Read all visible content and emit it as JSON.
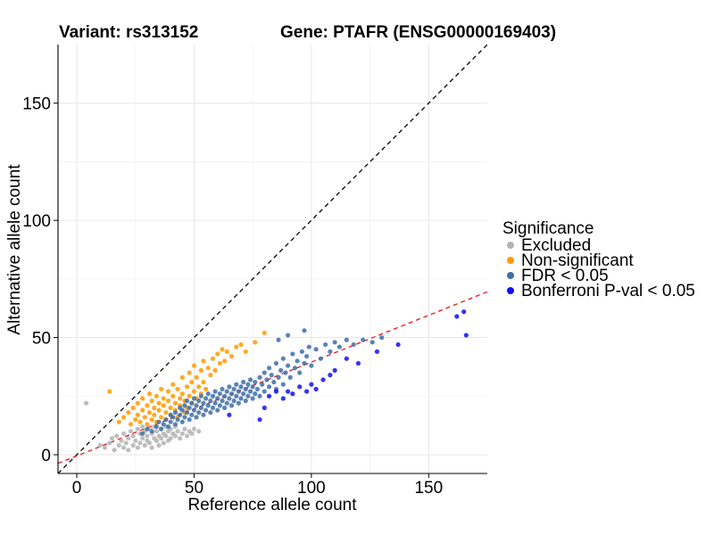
{
  "chart_data": {
    "type": "scatter",
    "title_left": "Variant: rs313152",
    "title_right": "Gene: PTAFR (ENSG00000169403)",
    "xlabel": "Reference allele count",
    "ylabel": "Alternative allele count",
    "xlim": [
      -8,
      175
    ],
    "ylim": [
      -8,
      175
    ],
    "x_ticks": [
      0,
      50,
      100,
      150
    ],
    "y_ticks": [
      0,
      50,
      100,
      150
    ],
    "grid": true,
    "legend_position": "right",
    "legend": {
      "title": "Significance",
      "entries": [
        {
          "label": "Excluded",
          "color": "#b3b3b3"
        },
        {
          "label": "Non-significant",
          "color": "#ff9a00"
        },
        {
          "label": "FDR < 0.05",
          "color": "#3d6fa8"
        },
        {
          "label": "Bonferroni P-val < 0.05",
          "color": "#1010ee"
        }
      ]
    },
    "reference_lines": [
      {
        "name": "identity",
        "slope": 1,
        "intercept": 0,
        "style": "dashed",
        "color": "#000000"
      },
      {
        "name": "fit",
        "slope": 0.4,
        "intercept": -0.5,
        "style": "dashed",
        "color": "#e31a1c"
      }
    ],
    "series": [
      {
        "name": "Excluded",
        "color": "#b3b3b3",
        "points": [
          [
            4,
            22
          ],
          [
            10,
            4
          ],
          [
            12,
            3
          ],
          [
            14,
            5
          ],
          [
            15,
            7
          ],
          [
            16,
            2
          ],
          [
            17,
            8
          ],
          [
            18,
            4
          ],
          [
            19,
            6
          ],
          [
            20,
            3
          ],
          [
            20,
            9
          ],
          [
            21,
            5
          ],
          [
            22,
            7
          ],
          [
            22,
            2
          ],
          [
            23,
            10
          ],
          [
            24,
            4
          ],
          [
            24,
            8
          ],
          [
            25,
            6
          ],
          [
            26,
            3
          ],
          [
            26,
            11
          ],
          [
            27,
            5
          ],
          [
            27,
            9
          ],
          [
            28,
            7
          ],
          [
            28,
            12
          ],
          [
            29,
            4
          ],
          [
            29,
            10
          ],
          [
            30,
            6
          ],
          [
            30,
            8
          ],
          [
            31,
            11
          ],
          [
            31,
            5
          ],
          [
            32,
            9
          ],
          [
            32,
            3
          ],
          [
            33,
            7
          ],
          [
            33,
            12
          ],
          [
            34,
            10
          ],
          [
            34,
            6
          ],
          [
            35,
            8
          ],
          [
            35,
            4
          ],
          [
            36,
            11
          ],
          [
            36,
            7
          ],
          [
            37,
            9
          ],
          [
            37,
            5
          ],
          [
            38,
            12
          ],
          [
            38,
            8
          ],
          [
            39,
            10
          ],
          [
            39,
            6
          ],
          [
            40,
            7
          ],
          [
            40,
            11
          ],
          [
            41,
            9
          ],
          [
            42,
            8
          ],
          [
            42,
            12
          ],
          [
            43,
            10
          ],
          [
            44,
            7
          ],
          [
            45,
            9
          ],
          [
            46,
            11
          ],
          [
            47,
            8
          ],
          [
            48,
            10
          ],
          [
            49,
            9
          ],
          [
            50,
            11
          ],
          [
            52,
            10
          ]
        ]
      },
      {
        "name": "Non-significant",
        "color": "#ff9a00",
        "points": [
          [
            14,
            27
          ],
          [
            18,
            14
          ],
          [
            20,
            16
          ],
          [
            22,
            18
          ],
          [
            23,
            13
          ],
          [
            24,
            20
          ],
          [
            25,
            15
          ],
          [
            26,
            17
          ],
          [
            26,
            22
          ],
          [
            27,
            14
          ],
          [
            28,
            19
          ],
          [
            28,
            24
          ],
          [
            29,
            16
          ],
          [
            30,
            21
          ],
          [
            30,
            13
          ],
          [
            31,
            18
          ],
          [
            31,
            26
          ],
          [
            32,
            15
          ],
          [
            32,
            23
          ],
          [
            33,
            20
          ],
          [
            33,
            17
          ],
          [
            34,
            25
          ],
          [
            34,
            14
          ],
          [
            35,
            22
          ],
          [
            35,
            19
          ],
          [
            36,
            16
          ],
          [
            36,
            28
          ],
          [
            37,
            21
          ],
          [
            37,
            24
          ],
          [
            38,
            18
          ],
          [
            38,
            15
          ],
          [
            39,
            27
          ],
          [
            39,
            23
          ],
          [
            40,
            20
          ],
          [
            40,
            17
          ],
          [
            41,
            25
          ],
          [
            41,
            30
          ],
          [
            42,
            22
          ],
          [
            42,
            19
          ],
          [
            43,
            16
          ],
          [
            43,
            28
          ],
          [
            44,
            24
          ],
          [
            44,
            21
          ],
          [
            45,
            33
          ],
          [
            45,
            26
          ],
          [
            46,
            18
          ],
          [
            46,
            23
          ],
          [
            47,
            29
          ],
          [
            47,
            20
          ],
          [
            48,
            35
          ],
          [
            48,
            25
          ],
          [
            49,
            22
          ],
          [
            49,
            31
          ],
          [
            50,
            27
          ],
          [
            50,
            38
          ],
          [
            51,
            24
          ],
          [
            51,
            33
          ],
          [
            52,
            29
          ],
          [
            53,
            36
          ],
          [
            53,
            26
          ],
          [
            54,
            40
          ],
          [
            54,
            31
          ],
          [
            55,
            28
          ],
          [
            56,
            37
          ],
          [
            57,
            34
          ],
          [
            58,
            41
          ],
          [
            59,
            36
          ],
          [
            60,
            43
          ],
          [
            61,
            39
          ],
          [
            62,
            45
          ],
          [
            63,
            40
          ],
          [
            64,
            44
          ],
          [
            66,
            42
          ],
          [
            68,
            46
          ],
          [
            70,
            47
          ],
          [
            72,
            44
          ],
          [
            76,
            48
          ],
          [
            80,
            52
          ]
        ]
      },
      {
        "name": "FDR < 0.05",
        "color": "#3d6fa8",
        "points": [
          [
            28,
            9
          ],
          [
            30,
            11
          ],
          [
            32,
            10
          ],
          [
            34,
            12
          ],
          [
            35,
            14
          ],
          [
            36,
            11
          ],
          [
            37,
            13
          ],
          [
            38,
            15
          ],
          [
            39,
            12
          ],
          [
            40,
            14
          ],
          [
            40,
            17
          ],
          [
            41,
            16
          ],
          [
            42,
            13
          ],
          [
            42,
            18
          ],
          [
            43,
            15
          ],
          [
            44,
            17
          ],
          [
            44,
            20
          ],
          [
            45,
            14
          ],
          [
            45,
            19
          ],
          [
            46,
            16
          ],
          [
            46,
            21
          ],
          [
            47,
            18
          ],
          [
            47,
            23
          ],
          [
            48,
            15
          ],
          [
            48,
            20
          ],
          [
            49,
            22
          ],
          [
            49,
            17
          ],
          [
            50,
            19
          ],
          [
            50,
            24
          ],
          [
            51,
            21
          ],
          [
            51,
            16
          ],
          [
            52,
            23
          ],
          [
            52,
            18
          ],
          [
            53,
            20
          ],
          [
            53,
            25
          ],
          [
            54,
            22
          ],
          [
            54,
            17
          ],
          [
            55,
            24
          ],
          [
            55,
            19
          ],
          [
            56,
            21
          ],
          [
            56,
            26
          ],
          [
            57,
            23
          ],
          [
            57,
            18
          ],
          [
            58,
            25
          ],
          [
            58,
            20
          ],
          [
            59,
            22
          ],
          [
            59,
            27
          ],
          [
            60,
            24
          ],
          [
            60,
            19
          ],
          [
            61,
            26
          ],
          [
            61,
            21
          ],
          [
            62,
            23
          ],
          [
            62,
            28
          ],
          [
            63,
            25
          ],
          [
            63,
            20
          ],
          [
            64,
            27
          ],
          [
            64,
            22
          ],
          [
            65,
            24
          ],
          [
            65,
            29
          ],
          [
            66,
            26
          ],
          [
            66,
            21
          ],
          [
            67,
            28
          ],
          [
            67,
            23
          ],
          [
            68,
            25
          ],
          [
            68,
            30
          ],
          [
            69,
            27
          ],
          [
            69,
            22
          ],
          [
            70,
            29
          ],
          [
            70,
            24
          ],
          [
            71,
            26
          ],
          [
            71,
            31
          ],
          [
            72,
            28
          ],
          [
            72,
            23
          ],
          [
            73,
            30
          ],
          [
            73,
            25
          ],
          [
            74,
            27
          ],
          [
            74,
            32
          ],
          [
            75,
            29
          ],
          [
            75,
            24
          ],
          [
            76,
            31
          ],
          [
            76,
            26
          ],
          [
            77,
            28
          ],
          [
            78,
            33
          ],
          [
            78,
            25
          ],
          [
            79,
            30
          ],
          [
            80,
            35
          ],
          [
            80,
            27
          ],
          [
            81,
            32
          ],
          [
            82,
            29
          ],
          [
            82,
            37
          ],
          [
            83,
            34
          ],
          [
            84,
            31
          ],
          [
            85,
            39
          ],
          [
            85,
            28
          ],
          [
            86,
            33
          ],
          [
            87,
            36
          ],
          [
            88,
            41
          ],
          [
            88,
            30
          ],
          [
            89,
            35
          ],
          [
            90,
            38
          ],
          [
            91,
            33
          ],
          [
            92,
            43
          ],
          [
            93,
            37
          ],
          [
            94,
            40
          ],
          [
            95,
            35
          ],
          [
            96,
            44
          ],
          [
            97,
            39
          ],
          [
            98,
            42
          ],
          [
            99,
            46
          ],
          [
            100,
            38
          ],
          [
            102,
            45
          ],
          [
            104,
            41
          ],
          [
            106,
            47
          ],
          [
            108,
            44
          ],
          [
            110,
            48
          ],
          [
            112,
            46
          ],
          [
            115,
            49
          ],
          [
            118,
            47
          ],
          [
            122,
            49
          ],
          [
            126,
            48
          ],
          [
            130,
            50
          ],
          [
            97,
            53
          ],
          [
            90,
            51
          ],
          [
            86,
            49
          ]
        ]
      },
      {
        "name": "Bonferroni P-val < 0.05",
        "color": "#1010ee",
        "points": [
          [
            65,
            17
          ],
          [
            78,
            15
          ],
          [
            80,
            20
          ],
          [
            82,
            25
          ],
          [
            85,
            27
          ],
          [
            88,
            24
          ],
          [
            90,
            27
          ],
          [
            92,
            26
          ],
          [
            95,
            29
          ],
          [
            98,
            27
          ],
          [
            100,
            30
          ],
          [
            102,
            28
          ],
          [
            105,
            32
          ],
          [
            108,
            34
          ],
          [
            110,
            36
          ],
          [
            115,
            41
          ],
          [
            120,
            39
          ],
          [
            128,
            44
          ],
          [
            137,
            47
          ],
          [
            162,
            59
          ],
          [
            165,
            61
          ],
          [
            166,
            51
          ]
        ]
      }
    ]
  }
}
